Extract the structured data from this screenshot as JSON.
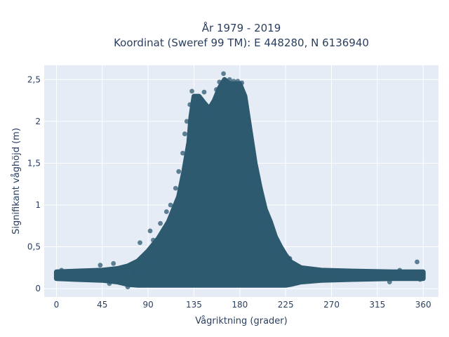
{
  "chart_data": {
    "type": "scatter",
    "title_line1": "År 1979 - 2019",
    "title_line2": "Koordinat (Sweref 99 TM): E 448280, N 6136940",
    "xlabel": "Vågriktning (grader)",
    "ylabel": "Signifikant våghöjd (m)",
    "xlim": [
      -12,
      375
    ],
    "ylim": [
      -0.1,
      2.67
    ],
    "x_ticks": [
      0,
      45,
      90,
      135,
      180,
      225,
      270,
      315,
      360
    ],
    "x_tick_labels": [
      "0",
      "45",
      "90",
      "135",
      "180",
      "225",
      "270",
      "315",
      "360"
    ],
    "y_ticks": [
      0,
      0.5,
      1,
      1.5,
      2,
      2.5
    ],
    "y_tick_labels": [
      "0",
      "0,5",
      "1",
      "1,5",
      "2",
      "2,5"
    ],
    "grid": true,
    "marker_color": "#2e5a70",
    "plot_background": "#e5ecf6",
    "envelope": {
      "x": [
        0,
        20,
        45,
        60,
        70,
        80,
        90,
        100,
        110,
        115,
        120,
        125,
        130,
        132,
        135,
        140,
        145,
        150,
        155,
        160,
        165,
        170,
        175,
        180,
        185,
        190,
        195,
        200,
        205,
        210,
        215,
        220,
        225,
        230,
        240,
        260,
        290,
        330,
        360
      ],
      "upper": [
        0.2,
        0.21,
        0.22,
        0.24,
        0.27,
        0.33,
        0.45,
        0.6,
        0.8,
        0.95,
        1.1,
        1.4,
        1.75,
        2.05,
        2.3,
        2.3,
        2.22,
        2.15,
        2.25,
        2.4,
        2.5,
        2.45,
        2.45,
        2.45,
        2.3,
        1.9,
        1.5,
        1.2,
        0.95,
        0.8,
        0.62,
        0.5,
        0.4,
        0.32,
        0.25,
        0.22,
        0.21,
        0.2,
        0.2
      ],
      "lower": [
        0.12,
        0.11,
        0.1,
        0.08,
        0.05,
        0.04,
        0.04,
        0.04,
        0.04,
        0.04,
        0.04,
        0.04,
        0.04,
        0.04,
        0.04,
        0.04,
        0.04,
        0.04,
        0.04,
        0.04,
        0.04,
        0.04,
        0.04,
        0.04,
        0.04,
        0.04,
        0.04,
        0.04,
        0.04,
        0.04,
        0.04,
        0.04,
        0.04,
        0.05,
        0.08,
        0.1,
        0.11,
        0.12,
        0.12
      ]
    },
    "points": [
      {
        "x": 4,
        "y": 0.12
      },
      {
        "x": 5,
        "y": 0.22
      },
      {
        "x": 8,
        "y": 0.16
      },
      {
        "x": 11,
        "y": 0.2
      },
      {
        "x": 14,
        "y": 0.18
      },
      {
        "x": 18,
        "y": 0.14
      },
      {
        "x": 21,
        "y": 0.19
      },
      {
        "x": 26,
        "y": 0.17
      },
      {
        "x": 30,
        "y": 0.21
      },
      {
        "x": 33,
        "y": 0.15
      },
      {
        "x": 37,
        "y": 0.18
      },
      {
        "x": 40,
        "y": 0.22
      },
      {
        "x": 43,
        "y": 0.28
      },
      {
        "x": 46,
        "y": 0.12
      },
      {
        "x": 49,
        "y": 0.2
      },
      {
        "x": 52,
        "y": 0.06
      },
      {
        "x": 54,
        "y": 0.16
      },
      {
        "x": 56,
        "y": 0.3
      },
      {
        "x": 60,
        "y": 0.21
      },
      {
        "x": 63,
        "y": 0.1
      },
      {
        "x": 66,
        "y": 0.24
      },
      {
        "x": 70,
        "y": 0.02
      },
      {
        "x": 76,
        "y": 0.19
      },
      {
        "x": 82,
        "y": 0.55
      },
      {
        "x": 88,
        "y": 0.35
      },
      {
        "x": 92,
        "y": 0.69
      },
      {
        "x": 95,
        "y": 0.58
      },
      {
        "x": 102,
        "y": 0.78
      },
      {
        "x": 108,
        "y": 0.92
      },
      {
        "x": 112,
        "y": 1.0
      },
      {
        "x": 117,
        "y": 1.2
      },
      {
        "x": 120,
        "y": 1.4
      },
      {
        "x": 124,
        "y": 1.62
      },
      {
        "x": 126,
        "y": 1.85
      },
      {
        "x": 128,
        "y": 2.0
      },
      {
        "x": 131,
        "y": 2.2
      },
      {
        "x": 133,
        "y": 2.36
      },
      {
        "x": 136,
        "y": 2.3
      },
      {
        "x": 139,
        "y": 2.28
      },
      {
        "x": 143,
        "y": 2.25
      },
      {
        "x": 145,
        "y": 2.35
      },
      {
        "x": 147,
        "y": 2.12
      },
      {
        "x": 150,
        "y": 2.1
      },
      {
        "x": 153,
        "y": 2.2
      },
      {
        "x": 157,
        "y": 2.38
      },
      {
        "x": 160,
        "y": 2.47
      },
      {
        "x": 162,
        "y": 2.42
      },
      {
        "x": 164,
        "y": 2.57
      },
      {
        "x": 167,
        "y": 2.45
      },
      {
        "x": 170,
        "y": 2.5
      },
      {
        "x": 174,
        "y": 2.48
      },
      {
        "x": 178,
        "y": 2.48
      },
      {
        "x": 182,
        "y": 2.46
      },
      {
        "x": 186,
        "y": 2.2
      },
      {
        "x": 189,
        "y": 1.95
      },
      {
        "x": 192,
        "y": 1.55
      },
      {
        "x": 196,
        "y": 1.3
      },
      {
        "x": 200,
        "y": 1.0
      },
      {
        "x": 203,
        "y": 0.9
      },
      {
        "x": 207,
        "y": 0.72
      },
      {
        "x": 212,
        "y": 0.6
      },
      {
        "x": 216,
        "y": 0.5
      },
      {
        "x": 220,
        "y": 0.45
      },
      {
        "x": 224,
        "y": 0.42
      },
      {
        "x": 229,
        "y": 0.36
      },
      {
        "x": 233,
        "y": 0.3
      },
      {
        "x": 238,
        "y": 0.25
      },
      {
        "x": 244,
        "y": 0.22
      },
      {
        "x": 250,
        "y": 0.2
      },
      {
        "x": 256,
        "y": 0.18
      },
      {
        "x": 262,
        "y": 0.2
      },
      {
        "x": 268,
        "y": 0.17
      },
      {
        "x": 274,
        "y": 0.2
      },
      {
        "x": 281,
        "y": 0.15
      },
      {
        "x": 287,
        "y": 0.21
      },
      {
        "x": 294,
        "y": 0.16
      },
      {
        "x": 300,
        "y": 0.2
      },
      {
        "x": 305,
        "y": 0.14
      },
      {
        "x": 310,
        "y": 0.19
      },
      {
        "x": 317,
        "y": 0.15
      },
      {
        "x": 322,
        "y": 0.2
      },
      {
        "x": 327,
        "y": 0.08
      },
      {
        "x": 332,
        "y": 0.17
      },
      {
        "x": 337,
        "y": 0.22
      },
      {
        "x": 342,
        "y": 0.14
      },
      {
        "x": 347,
        "y": 0.19
      },
      {
        "x": 352,
        "y": 0.13
      },
      {
        "x": 354,
        "y": 0.32
      },
      {
        "x": 357,
        "y": 0.11
      },
      {
        "x": 360,
        "y": 0.17
      }
    ]
  }
}
